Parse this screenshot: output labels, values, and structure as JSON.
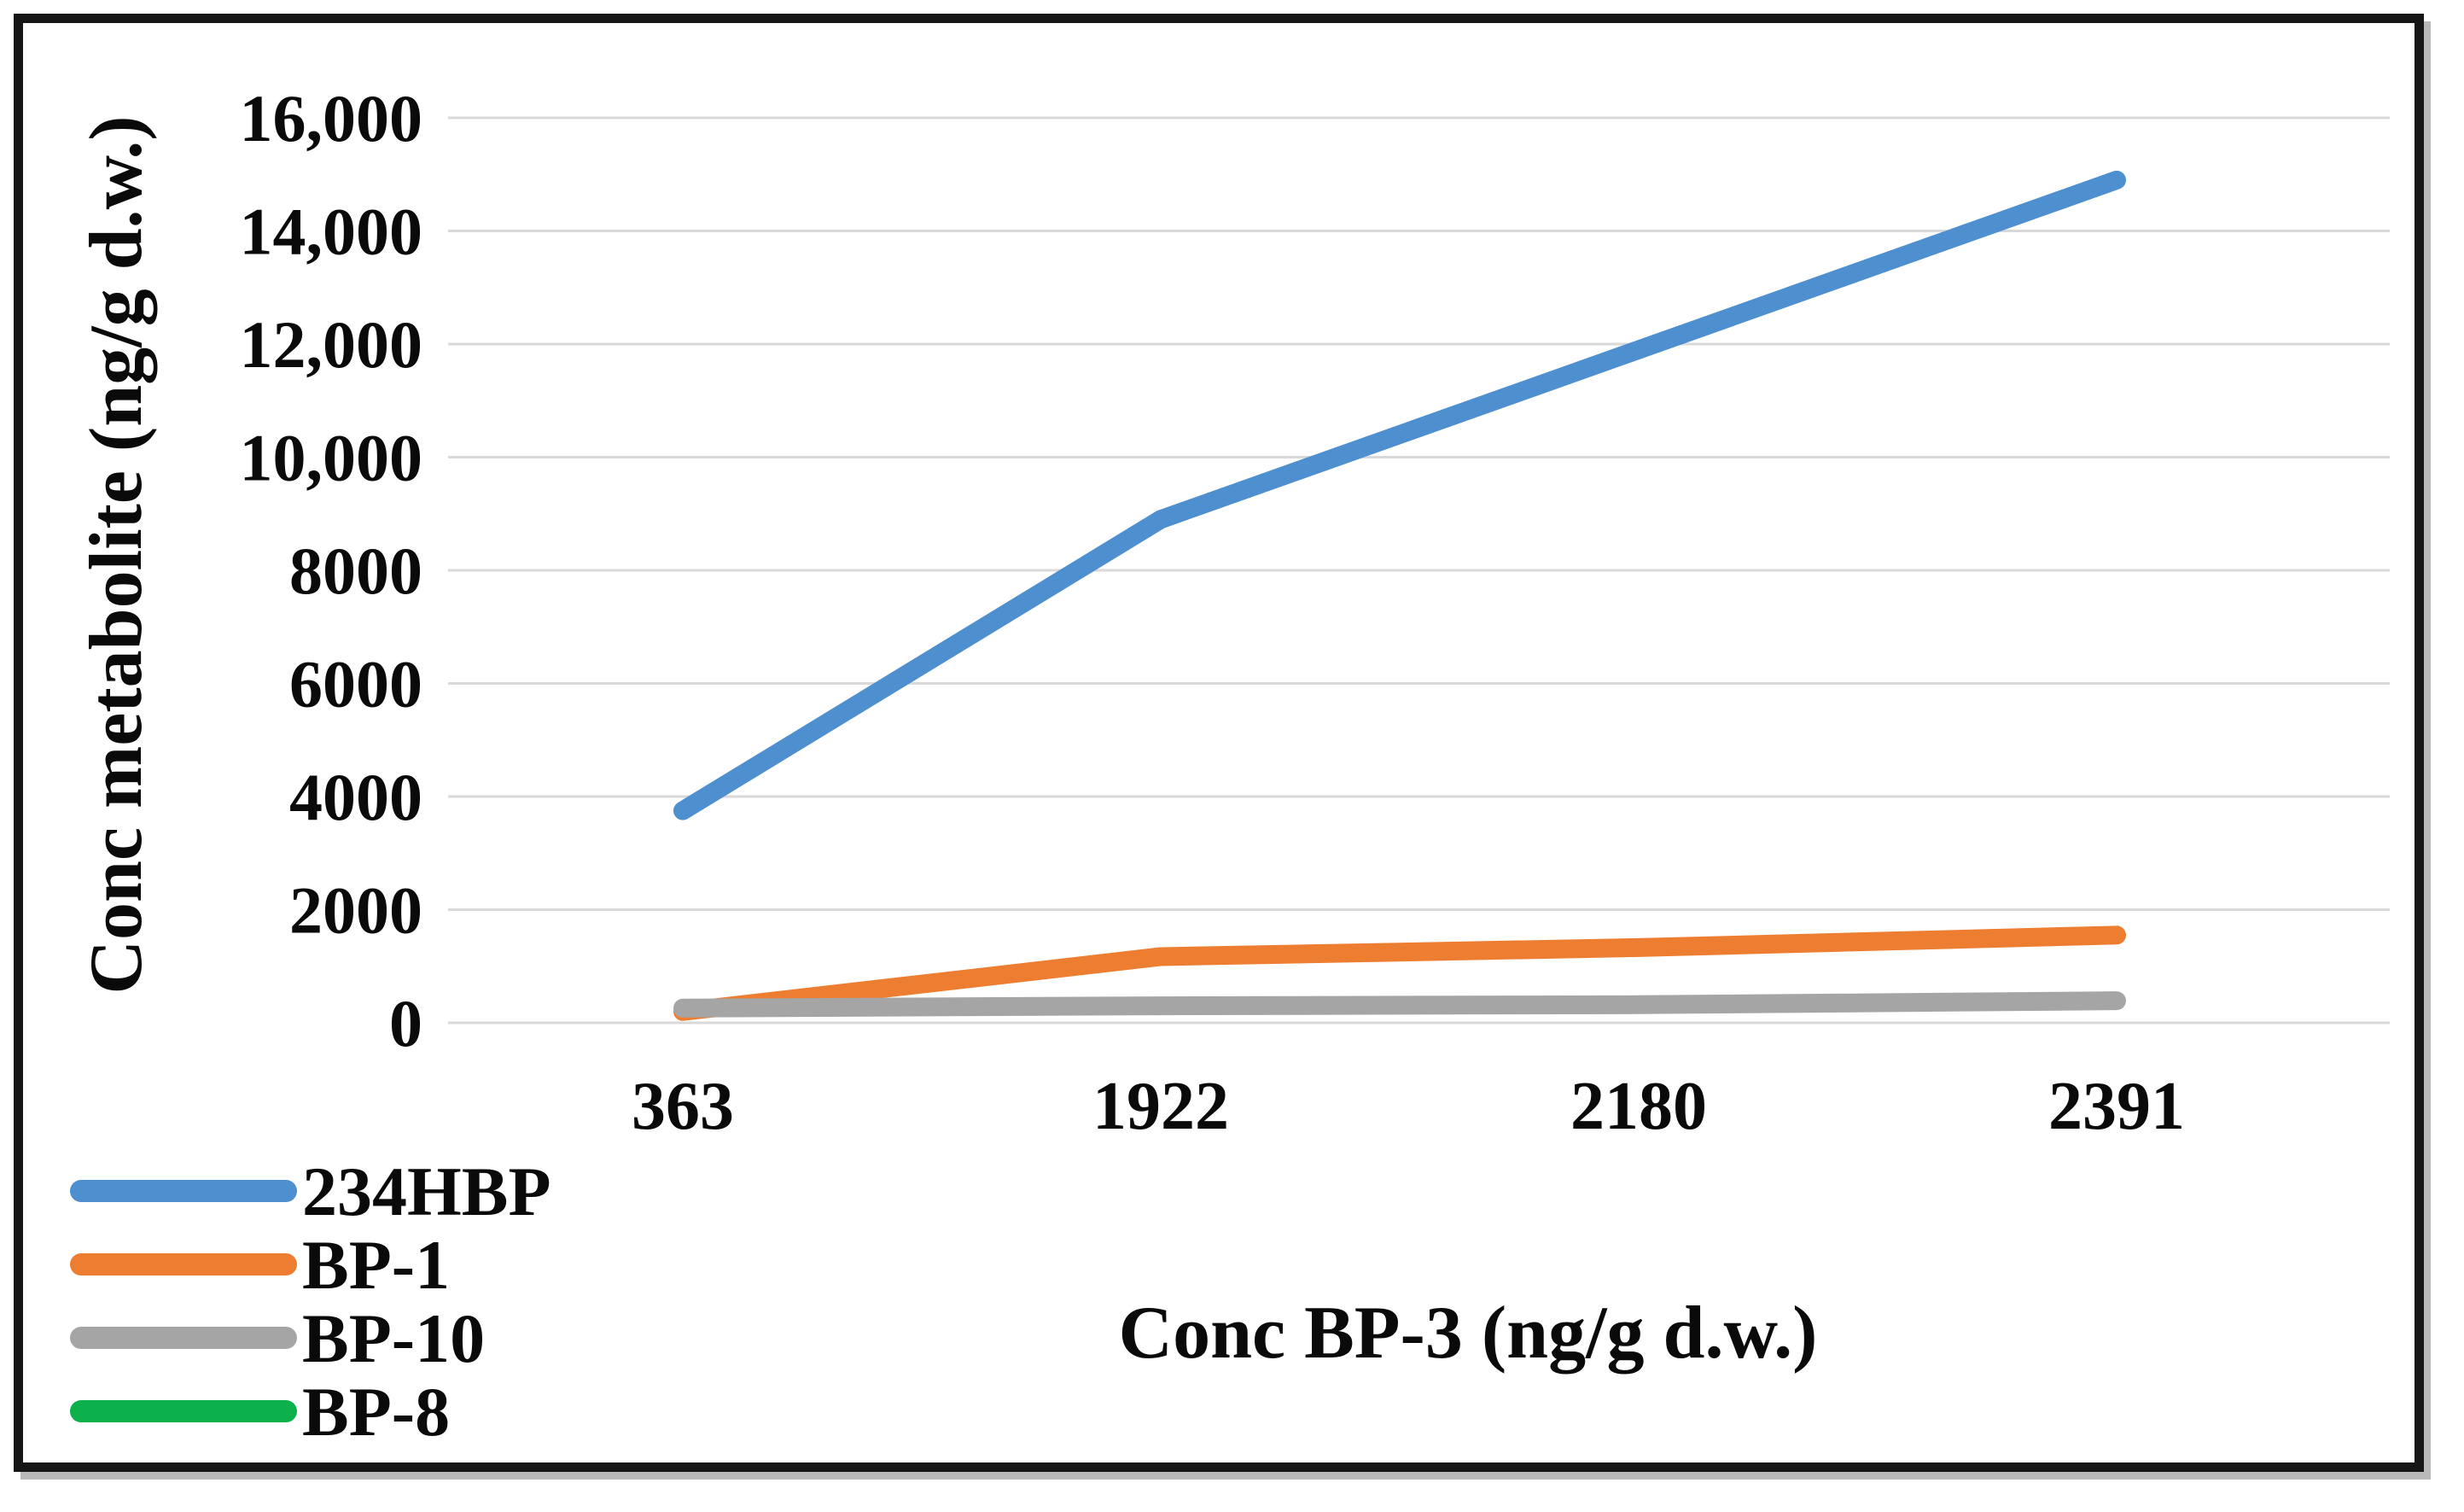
{
  "chart_data": {
    "type": "line",
    "title": "",
    "xlabel": "Conc BP-3 (ng/g d.w.)",
    "ylabel": "Conc metabolite (ng/g d.w.)",
    "categories": [
      "363",
      "1922",
      "2180",
      "2391"
    ],
    "x_values_numeric": [
      363,
      1922,
      2180,
      2391
    ],
    "series": [
      {
        "name": "234HBP",
        "color": "#4E8FD0",
        "values": [
          3750,
          8900,
          11900,
          14900
        ],
        "visible_in_plot": true
      },
      {
        "name": "BP-1",
        "color": "#ED7D31",
        "values": [
          200,
          1170,
          1330,
          1550
        ],
        "visible_in_plot": true
      },
      {
        "name": "BP-10",
        "color": "#A5A5A5",
        "values": [
          260,
          300,
          320,
          390
        ],
        "visible_in_plot": true
      },
      {
        "name": "BP-8",
        "color": "#0DB14B",
        "values": [
          0,
          0,
          0,
          0
        ],
        "visible_in_plot": false
      }
    ],
    "ylim": [
      0,
      16000
    ],
    "ytick_interval": 2000,
    "ytick_labels": [
      "0",
      "2000",
      "4000",
      "6000",
      "8000",
      "10,000",
      "12,000",
      "14,000",
      "16,000"
    ],
    "grid": "horizontal",
    "gridline_color": "#D9D9D9",
    "legend_position": "bottom-left",
    "x_axis_type": "category"
  },
  "frame": {
    "border_color": "#161616",
    "background": "#FFFFFF"
  }
}
